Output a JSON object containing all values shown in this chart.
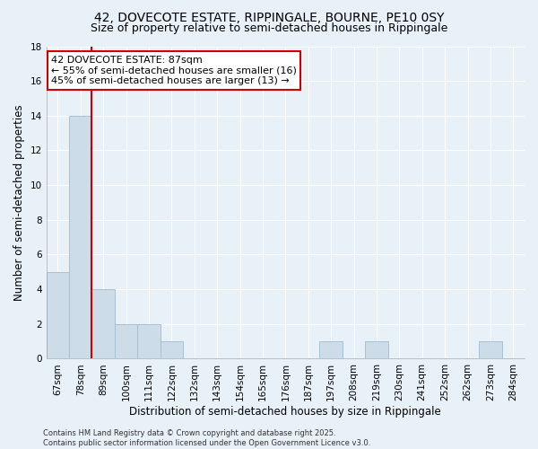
{
  "title": "42, DOVECOTE ESTATE, RIPPINGALE, BOURNE, PE10 0SY",
  "subtitle": "Size of property relative to semi-detached houses in Rippingale",
  "xlabel": "Distribution of semi-detached houses by size in Rippingale",
  "ylabel": "Number of semi-detached properties",
  "categories": [
    "67sqm",
    "78sqm",
    "89sqm",
    "100sqm",
    "111sqm",
    "122sqm",
    "132sqm",
    "143sqm",
    "154sqm",
    "165sqm",
    "176sqm",
    "187sqm",
    "197sqm",
    "208sqm",
    "219sqm",
    "230sqm",
    "241sqm",
    "252sqm",
    "262sqm",
    "273sqm",
    "284sqm"
  ],
  "values": [
    5,
    14,
    4,
    2,
    2,
    1,
    0,
    0,
    0,
    0,
    0,
    0,
    1,
    0,
    1,
    0,
    0,
    0,
    0,
    1,
    0
  ],
  "bar_color": "#ccdce8",
  "bar_edge_color": "#a8c0d0",
  "highlight_line_color": "#cc0000",
  "annotation_text": "42 DOVECOTE ESTATE: 87sqm\n← 55% of semi-detached houses are smaller (16)\n45% of semi-detached houses are larger (13) →",
  "annotation_box_color": "#ffffff",
  "annotation_box_edge": "#cc0000",
  "ylim": [
    0,
    18
  ],
  "yticks": [
    0,
    2,
    4,
    6,
    8,
    10,
    12,
    14,
    16,
    18
  ],
  "footer_text": "Contains HM Land Registry data © Crown copyright and database right 2025.\nContains public sector information licensed under the Open Government Licence v3.0.",
  "background_color": "#e8f0f8",
  "grid_color": "#d0dce8",
  "title_fontsize": 10,
  "subtitle_fontsize": 9,
  "tick_fontsize": 7.5,
  "ylabel_fontsize": 8.5,
  "xlabel_fontsize": 8.5,
  "footer_fontsize": 6,
  "annotation_fontsize": 8
}
